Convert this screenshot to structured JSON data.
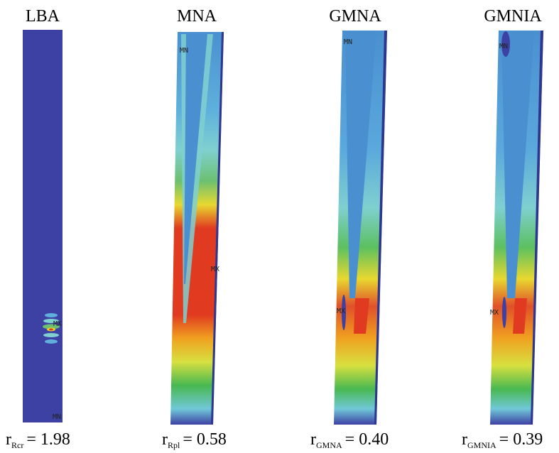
{
  "panels": [
    {
      "title": "LBA",
      "labels": [
        "MX",
        "MN"
      ],
      "equation": {
        "symbol": "r",
        "subscript": "Rcr",
        "value": "= 1.98"
      }
    },
    {
      "title": "MNA",
      "labels": [
        "MN",
        "MX"
      ],
      "equation": {
        "symbol": "r",
        "subscript": "Rpl",
        "value": "= 0.58"
      }
    },
    {
      "title": "GMNA",
      "labels": [
        "MN",
        "MX"
      ],
      "equation": {
        "symbol": "r",
        "subscript": "GMNA",
        "value": "= 0.40"
      }
    },
    {
      "title": "GMNIA",
      "labels": [
        "MN",
        "MX"
      ],
      "equation": {
        "symbol": "r",
        "subscript": "GMNIA",
        "value": "= 0.39"
      }
    }
  ]
}
